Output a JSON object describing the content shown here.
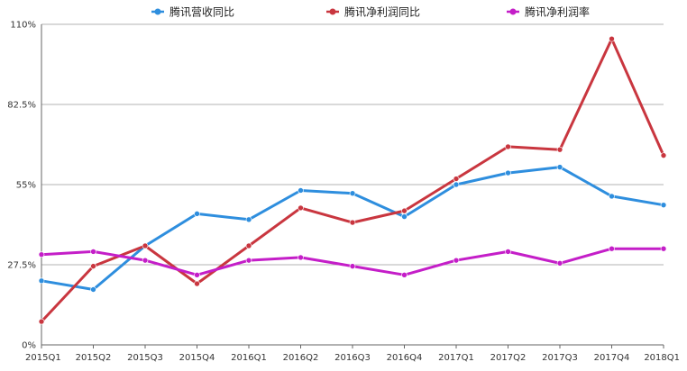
{
  "chart_data": {
    "type": "line",
    "title": "",
    "xlabel": "",
    "ylabel": "",
    "categories": [
      "2015Q1",
      "2015Q2",
      "2015Q3",
      "2015Q4",
      "2016Q1",
      "2016Q2",
      "2016Q3",
      "2016Q4",
      "2017Q1",
      "2017Q2",
      "2017Q3",
      "2017Q4",
      "2018Q1"
    ],
    "ylim": [
      0,
      110
    ],
    "yticks": [
      0,
      27.5,
      55,
      82.5,
      110
    ],
    "ytick_labels": [
      "0%",
      "27.5%",
      "55%",
      "82.5%",
      "110%"
    ],
    "grid": true,
    "legend_position": "top",
    "series": [
      {
        "name": "腾讯营收同比",
        "color": "#2e8ede",
        "values": [
          22,
          19,
          34,
          45,
          43,
          53,
          52,
          44,
          55,
          59,
          61,
          51,
          48
        ]
      },
      {
        "name": "腾讯净利润同比",
        "color": "#c9363f",
        "values": [
          8,
          27,
          34,
          21,
          34,
          47,
          42,
          46,
          57,
          68,
          67,
          105,
          65
        ]
      },
      {
        "name": "腾讯净利润率",
        "color": "#c41ec8",
        "values": [
          31,
          32,
          29,
          24,
          29,
          30,
          27,
          24,
          29,
          32,
          28,
          33,
          33
        ]
      }
    ]
  }
}
